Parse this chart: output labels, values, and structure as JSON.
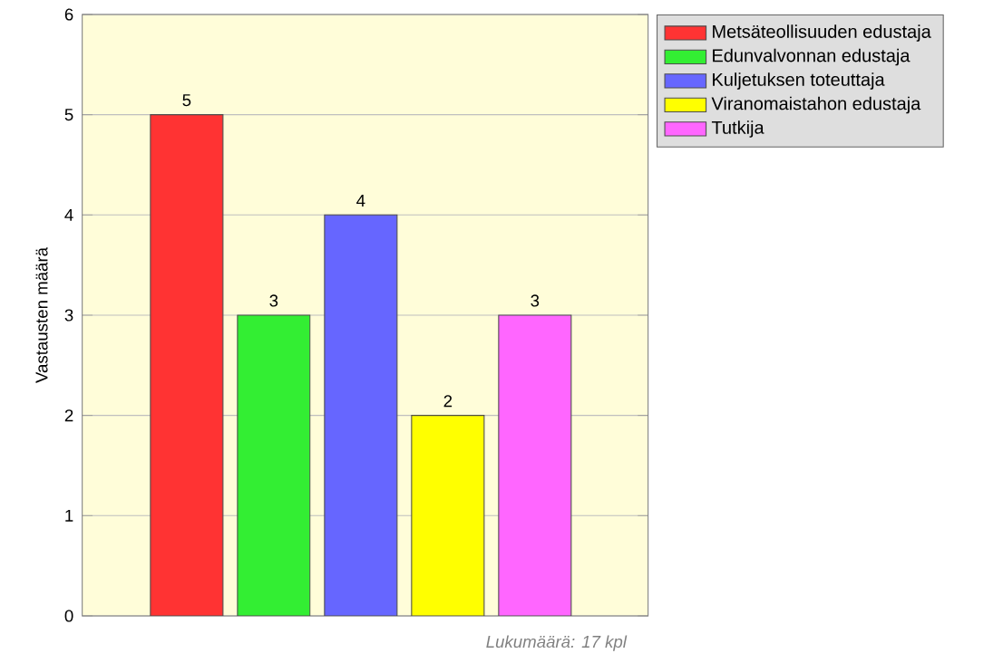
{
  "chart_data": {
    "type": "bar",
    "ylabel": "Vastausten määrä",
    "categories": [
      null,
      null,
      null,
      null,
      null
    ],
    "series": [
      {
        "name": "Metsäteollisuuden edustaja",
        "color": "#ff3333",
        "values": [
          5,
          null,
          null,
          null,
          null
        ]
      },
      {
        "name": "Edunvalvonnan edustaja",
        "color": "#33ee33",
        "values": [
          null,
          3,
          null,
          null,
          null
        ]
      },
      {
        "name": "Kuljetuksen toteuttaja",
        "color": "#6666ff",
        "values": [
          null,
          null,
          4,
          null,
          null
        ]
      },
      {
        "name": "Viranomaistahon edustaja",
        "color": "#ffff00",
        "values": [
          null,
          null,
          null,
          2,
          null
        ]
      },
      {
        "name": "Tutkija",
        "color": "#ff66ff",
        "values": [
          null,
          null,
          null,
          null,
          3
        ]
      }
    ],
    "ylim": [
      0,
      6
    ],
    "yticks": [
      0,
      1,
      2,
      3,
      4,
      5,
      6
    ],
    "grid": "y",
    "legend": "top right",
    "data_labels": true,
    "annotations": [
      "Lukumäärä: 17 kpl"
    ]
  }
}
